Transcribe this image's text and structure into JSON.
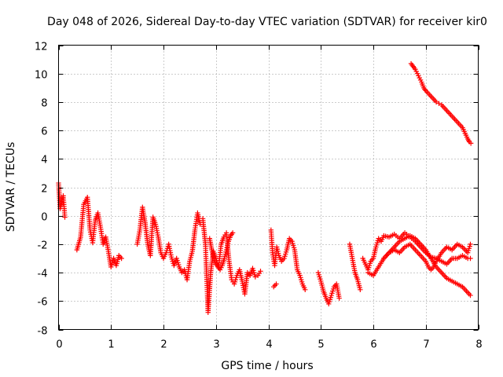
{
  "chart_data": {
    "type": "scatter",
    "title": "Day 048 of 2026, Sidereal Day-to-day VTEC variation (SDTVAR) for receiver kir0",
    "xlabel": "GPS time / hours",
    "ylabel": "SDTVAR / TECUs",
    "xlim": [
      0,
      8
    ],
    "ylim": [
      -8,
      12
    ],
    "xticks": [
      0,
      1,
      2,
      3,
      4,
      5,
      6,
      7,
      8
    ],
    "yticks": [
      -8,
      -6,
      -4,
      -2,
      0,
      2,
      4,
      6,
      8,
      10,
      12
    ],
    "grid": true,
    "marker": "plus",
    "color": "#ff0000",
    "segments": [
      {
        "x": [
          0.0,
          0.03,
          0.06,
          0.09,
          0.12
        ],
        "y": [
          2.3,
          0.5,
          1.0,
          1.4,
          -0.1
        ]
      },
      {
        "x": [
          0.35,
          0.42,
          0.48,
          0.55,
          0.6,
          0.65,
          0.7,
          0.75,
          0.8,
          0.85,
          0.9,
          0.95,
          1.0,
          1.05,
          1.1,
          1.15,
          1.2
        ],
        "y": [
          -2.4,
          -1.5,
          0.8,
          1.3,
          -1.0,
          -1.9,
          -0.3,
          0.2,
          -0.8,
          -2.0,
          -1.5,
          -2.5,
          -3.6,
          -3.0,
          -3.5,
          -2.8,
          -3.0
        ]
      },
      {
        "x": [
          1.5,
          1.55,
          1.6,
          1.65,
          1.7,
          1.75,
          1.8,
          1.85,
          1.9,
          1.95,
          2.0,
          2.05,
          2.1,
          2.15,
          2.2,
          2.25,
          2.3,
          2.35,
          2.4,
          2.45,
          2.5,
          2.55,
          2.6,
          2.65,
          2.7
        ],
        "y": [
          -2.0,
          -1.0,
          0.6,
          -0.5,
          -2.0,
          -2.8,
          -0.1,
          -0.6,
          -1.5,
          -2.6,
          -3.0,
          -2.6,
          -2.0,
          -2.9,
          -3.5,
          -3.0,
          -3.6,
          -4.0,
          -3.8,
          -4.5,
          -3.2,
          -2.5,
          -1.0,
          0.2,
          -0.6
        ]
      },
      {
        "x": [
          2.75,
          2.8,
          2.85,
          2.9,
          2.95,
          3.0,
          3.05,
          3.1,
          3.15,
          3.2,
          3.25,
          3.3,
          3.35,
          3.4,
          3.45,
          3.5,
          3.55,
          3.6,
          3.65,
          3.7,
          3.75,
          3.8,
          3.85
        ],
        "y": [
          -0.2,
          -2.0,
          -6.8,
          -4.0,
          -2.5,
          -3.0,
          -3.6,
          -2.0,
          -1.5,
          -1.2,
          -3.2,
          -4.5,
          -4.8,
          -4.2,
          -3.8,
          -4.6,
          -5.5,
          -4.0,
          -4.2,
          -3.7,
          -4.3,
          -4.2,
          -3.9
        ]
      },
      {
        "x": [
          2.88,
          2.92,
          2.96,
          3.0,
          3.04,
          3.08,
          3.12,
          3.16,
          3.2,
          3.24,
          3.28,
          3.32
        ],
        "y": [
          -1.6,
          -2.4,
          -3.0,
          -3.4,
          -3.6,
          -3.8,
          -3.5,
          -3.0,
          -2.4,
          -1.8,
          -1.4,
          -1.2
        ]
      },
      {
        "x": [
          4.05,
          4.08,
          4.12,
          4.16,
          4.2,
          4.25,
          4.3,
          4.35,
          4.4,
          4.45,
          4.5,
          4.55,
          4.6,
          4.65,
          4.7
        ],
        "y": [
          -1.0,
          -2.6,
          -3.5,
          -2.2,
          -2.8,
          -3.2,
          -3.0,
          -2.4,
          -1.6,
          -1.8,
          -2.4,
          -3.8,
          -4.2,
          -4.8,
          -5.2
        ]
      },
      {
        "x": [
          4.1,
          4.15
        ],
        "y": [
          -5.0,
          -4.8
        ]
      },
      {
        "x": [
          4.95,
          5.0,
          5.05,
          5.1,
          5.15,
          5.2,
          5.25,
          5.3,
          5.35
        ],
        "y": [
          -4.0,
          -4.6,
          -5.3,
          -5.8,
          -6.2,
          -5.6,
          -5.0,
          -4.8,
          -5.8
        ]
      },
      {
        "x": [
          5.55,
          5.6,
          5.65,
          5.7,
          5.75
        ],
        "y": [
          -2.0,
          -3.0,
          -4.0,
          -4.5,
          -5.2
        ]
      },
      {
        "x": [
          5.8,
          5.85,
          5.9,
          5.95,
          6.0,
          6.05,
          6.1,
          6.15,
          6.2,
          6.3,
          6.4,
          6.5,
          6.6,
          6.7,
          6.8,
          6.9,
          7.0,
          7.1,
          7.2,
          7.3,
          7.4,
          7.5,
          7.6,
          7.7,
          7.8,
          7.85
        ],
        "y": [
          -3.0,
          -3.4,
          -3.8,
          -3.2,
          -3.0,
          -2.2,
          -1.6,
          -1.8,
          -1.4,
          -1.5,
          -1.3,
          -1.6,
          -1.2,
          -1.5,
          -1.8,
          -2.2,
          -2.6,
          -2.9,
          -3.0,
          -3.2,
          -3.4,
          -3.0,
          -3.0,
          -2.8,
          -3.0,
          -3.0
        ]
      },
      {
        "x": [
          5.9,
          6.0,
          6.1,
          6.2,
          6.3,
          6.4,
          6.5,
          6.6,
          6.7,
          6.8,
          6.9,
          7.0,
          7.05,
          7.1,
          7.15,
          7.2,
          7.3,
          7.4,
          7.5,
          7.6,
          7.7,
          7.8,
          7.85
        ],
        "y": [
          -4.0,
          -4.2,
          -3.6,
          -3.0,
          -2.6,
          -2.4,
          -2.6,
          -2.2,
          -2.0,
          -2.4,
          -2.8,
          -3.2,
          -3.6,
          -3.8,
          -3.6,
          -3.2,
          -2.6,
          -2.2,
          -2.4,
          -2.0,
          -2.2,
          -2.6,
          -2.0
        ]
      },
      {
        "x": [
          6.2,
          6.3,
          6.4,
          6.5,
          6.6,
          6.7,
          6.8,
          6.9,
          7.0,
          7.1,
          7.2,
          7.3,
          7.4,
          7.5,
          7.6,
          7.7,
          7.8,
          7.85
        ],
        "y": [
          -3.0,
          -2.6,
          -2.2,
          -1.8,
          -1.6,
          -1.4,
          -1.6,
          -2.0,
          -2.4,
          -3.0,
          -3.6,
          -4.0,
          -4.4,
          -4.6,
          -4.8,
          -5.0,
          -5.4,
          -5.6
        ]
      },
      {
        "x": [
          6.72,
          6.76,
          6.8,
          6.84,
          6.88,
          6.92,
          6.96,
          7.0,
          7.05,
          7.1,
          7.15,
          7.2,
          7.25,
          7.3,
          7.35,
          7.4,
          7.45,
          7.5,
          7.55,
          7.6,
          7.65,
          7.7,
          7.75,
          7.8,
          7.83,
          7.86
        ],
        "y": [
          10.7,
          10.5,
          10.3,
          10.0,
          9.7,
          9.4,
          9.0,
          8.8,
          8.6,
          8.4,
          8.2,
          8.0,
          7.9,
          7.8,
          7.6,
          7.4,
          7.2,
          7.0,
          6.8,
          6.6,
          6.4,
          6.2,
          5.8,
          5.4,
          5.2,
          5.1
        ]
      }
    ]
  }
}
